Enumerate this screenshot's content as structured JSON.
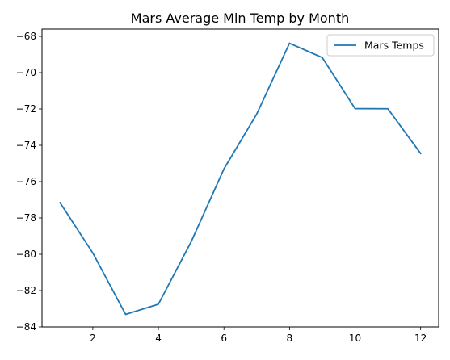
{
  "chart_data": {
    "type": "line",
    "title": "Mars Average Min Temp by Month",
    "xlabel": "",
    "ylabel": "",
    "x": [
      1,
      2,
      3,
      4,
      5,
      6,
      7,
      8,
      9,
      10,
      11,
      12
    ],
    "series": [
      {
        "name": "Mars Temps",
        "color": "#1f77b4",
        "values": [
          -77.16,
          -79.93,
          -83.31,
          -82.75,
          -79.31,
          -75.3,
          -72.28,
          -68.38,
          -69.17,
          -71.98,
          -71.99,
          -74.45
        ]
      }
    ],
    "xlim": [
      0.45,
      12.55
    ],
    "ylim": [
      -84.0,
      -67.6
    ],
    "x_ticks": [
      2,
      4,
      6,
      8,
      10,
      12
    ],
    "x_tick_labels": [
      "2",
      "4",
      "6",
      "8",
      "10",
      "12"
    ],
    "y_ticks": [
      -84,
      -82,
      -80,
      -78,
      -76,
      -74,
      -72,
      -70,
      -68
    ],
    "y_tick_labels": [
      "−84",
      "−82",
      "−80",
      "−78",
      "−76",
      "−74",
      "−72",
      "−70",
      "−68"
    ],
    "grid": false,
    "legend_position": "top-right"
  }
}
